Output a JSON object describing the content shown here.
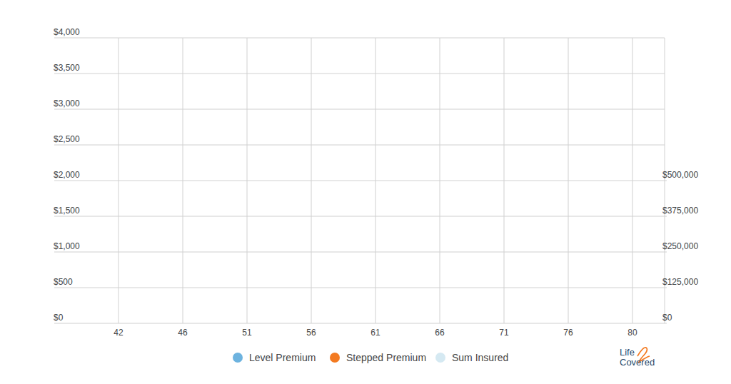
{
  "chart_data": {
    "type": "line",
    "categories": [
      "42",
      "46",
      "51",
      "56",
      "61",
      "66",
      "71",
      "76",
      "80"
    ],
    "series": [
      {
        "name": "Level Premium",
        "color": "#6db3df",
        "type": "line",
        "values": [
          null,
          null,
          null,
          null,
          null,
          null,
          null,
          null,
          null
        ]
      },
      {
        "name": "Stepped  Premium",
        "color": "#f37a21",
        "type": "line",
        "values": [
          null,
          null,
          null,
          null,
          null,
          null,
          null,
          null,
          null
        ]
      },
      {
        "name": "Sum Insured",
        "color": "#d5e9f2",
        "type": "area",
        "axis": "y2",
        "values": [
          null,
          null,
          null,
          null,
          null,
          null,
          null,
          null,
          null
        ]
      }
    ],
    "ylim": [
      0,
      4000
    ],
    "yticks": [
      {
        "value": 0,
        "label": "$0"
      },
      {
        "value": 500,
        "label": "$500"
      },
      {
        "value": 1000,
        "label": "$1,000"
      },
      {
        "value": 1500,
        "label": "$1,500"
      },
      {
        "value": 2000,
        "label": "$2,000"
      },
      {
        "value": 2500,
        "label": "$2,500"
      },
      {
        "value": 3000,
        "label": "$3,000"
      },
      {
        "value": 3500,
        "label": "$3,500"
      },
      {
        "value": 4000,
        "label": "$4,000"
      }
    ],
    "y2lim": [
      0,
      1000000
    ],
    "y2ticks": [
      {
        "value": 0,
        "label": "$0"
      },
      {
        "value": 125000,
        "label": "$125,000"
      },
      {
        "value": 250000,
        "label": "$250,000"
      },
      {
        "value": 375000,
        "label": "$375,000"
      },
      {
        "value": 500000,
        "label": "$500,000"
      }
    ],
    "grid": true,
    "legend": "bottom",
    "annotations": [
      "Life",
      "Covered"
    ]
  }
}
